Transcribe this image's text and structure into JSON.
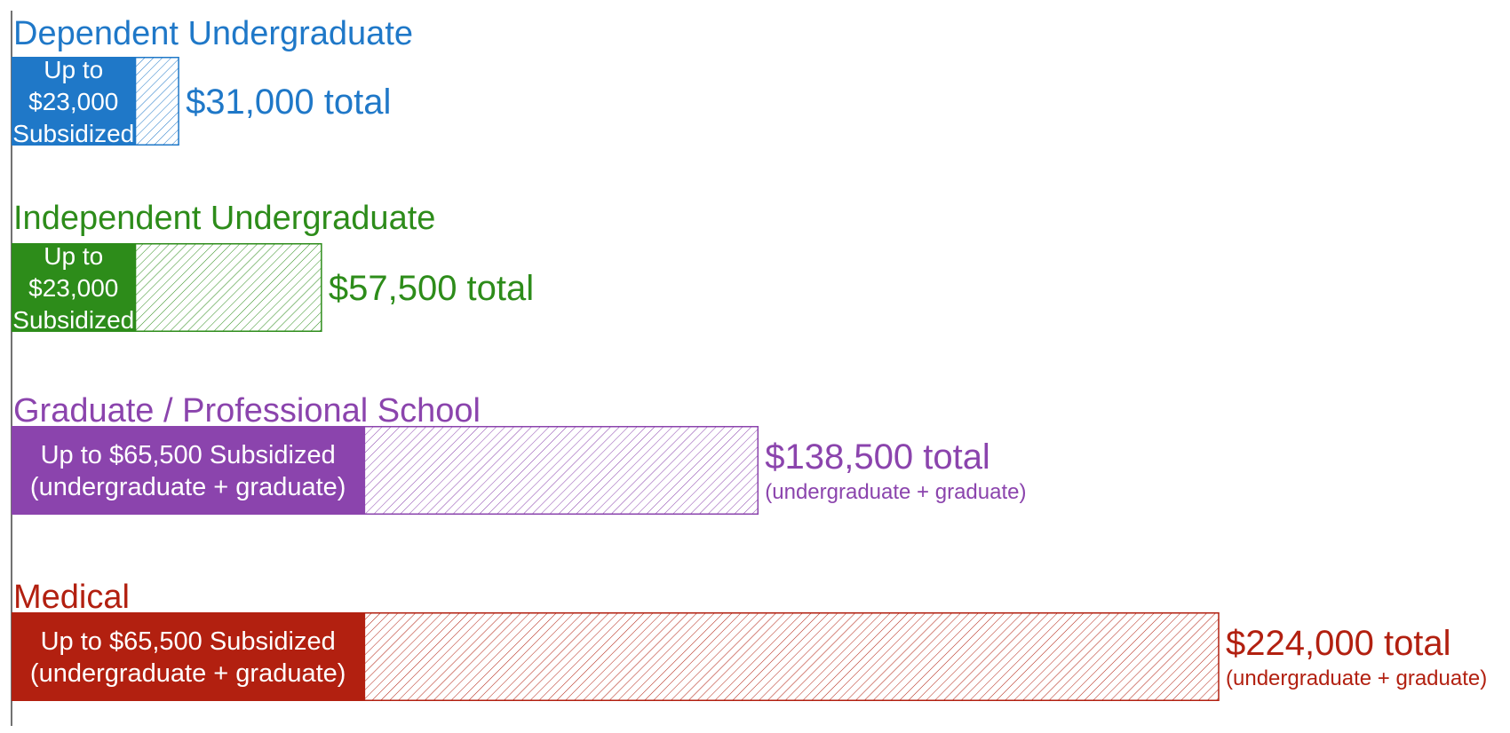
{
  "chart_data": {
    "type": "bar",
    "orientation": "horizontal",
    "stacked": true,
    "xlim": [
      0,
      224000
    ],
    "grid": false,
    "legend": "none",
    "categories": [
      "Dependent Undergraduate",
      "Independent Undergraduate",
      "Graduate / Professional School",
      "Medical"
    ],
    "series": [
      {
        "values": [
          23000,
          23000,
          65500,
          65500
        ],
        "labels": [
          [
            "Up to",
            "$23,000",
            "Subsidized"
          ],
          [
            "Up to",
            "$23,000",
            "Subsidized"
          ],
          [
            "Up to $65,500 Subsidized",
            "(undergraduate + graduate)"
          ],
          [
            "Up to $65,500 Subsidized",
            "(undergraduate + graduate)"
          ]
        ]
      },
      {
        "values": [
          8000,
          34500,
          73000,
          158500
        ]
      }
    ],
    "totals": [
      31000,
      57500,
      138500,
      224000
    ],
    "total_labels": [
      "$31,000 total",
      "$57,500 total",
      "$138,500 total",
      "$224,000 total"
    ],
    "total_sublabels": [
      "",
      "",
      "(undergraduate + graduate)",
      "(undergraduate + graduate)"
    ],
    "colors": [
      "#1f78c8",
      "#2d8c1a",
      "#8b44ad",
      "#b22010"
    ]
  }
}
